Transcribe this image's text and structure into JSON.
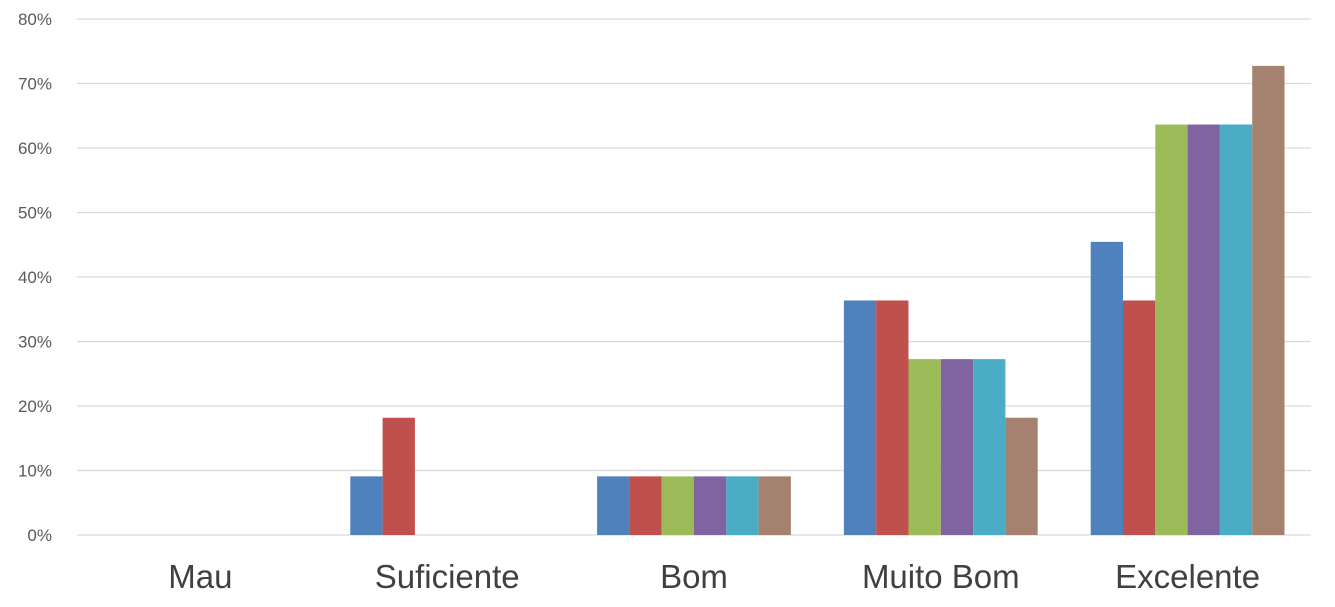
{
  "chart_data": {
    "type": "bar",
    "categories": [
      "Mau",
      "Suficiente",
      "Bom",
      "Muito Bom",
      "Excelente"
    ],
    "series": [
      {
        "color": "#4f81bd",
        "values": [
          0,
          9.09,
          9.09,
          36.36,
          45.45
        ]
      },
      {
        "color": "#c0504d",
        "values": [
          0,
          18.18,
          9.09,
          36.36,
          36.36
        ]
      },
      {
        "color": "#9bbb59",
        "values": [
          0,
          0,
          9.09,
          27.27,
          63.64
        ]
      },
      {
        "color": "#8064a2",
        "values": [
          0,
          0,
          9.09,
          27.27,
          63.64
        ]
      },
      {
        "color": "#4bacc6",
        "values": [
          0,
          0,
          9.09,
          27.27,
          63.64
        ]
      },
      {
        "color": "#a5826f",
        "values": [
          0,
          0,
          9.09,
          18.18,
          72.73
        ]
      }
    ],
    "y_ticks": [
      "0%",
      "10%",
      "20%",
      "30%",
      "40%",
      "50%",
      "60%",
      "70%",
      "80%"
    ],
    "ylim": [
      0,
      80
    ],
    "grid": true,
    "legend": "none"
  }
}
